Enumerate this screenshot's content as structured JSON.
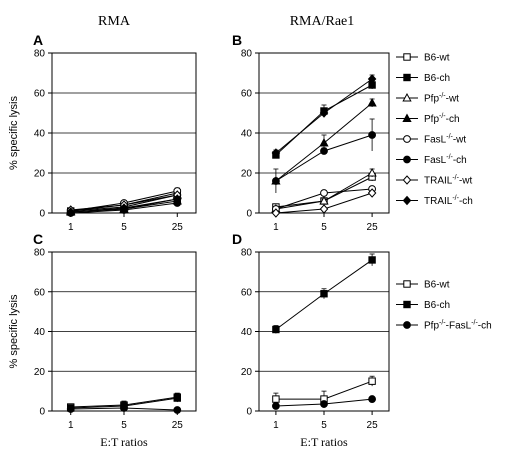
{
  "figure": {
    "col_titles": [
      "RMA",
      "RMA/Rae1"
    ],
    "ylabel": "% specific lysis",
    "xlabel": "E:T ratios"
  },
  "legend_top": [
    {
      "name_parts": [
        [
          "B6-wt",
          ""
        ]
      ],
      "series": "B6-wt"
    },
    {
      "name_parts": [
        [
          "B6-ch",
          ""
        ]
      ],
      "series": "B6-ch"
    },
    {
      "name_parts": [
        [
          "Pfp",
          ""
        ],
        [
          "-/-",
          "sup"
        ],
        [
          "-wt",
          ""
        ]
      ],
      "series": "Pfp-wt"
    },
    {
      "name_parts": [
        [
          "Pfp",
          ""
        ],
        [
          "-/-",
          "sup"
        ],
        [
          "-ch",
          ""
        ]
      ],
      "series": "Pfp-ch"
    },
    {
      "name_parts": [
        [
          "FasL",
          ""
        ],
        [
          "-/-",
          "sup"
        ],
        [
          "-wt",
          ""
        ]
      ],
      "series": "FasL-wt"
    },
    {
      "name_parts": [
        [
          "FasL",
          ""
        ],
        [
          "-/-",
          "sup"
        ],
        [
          "-ch",
          ""
        ]
      ],
      "series": "FasL-ch"
    },
    {
      "name_parts": [
        [
          "TRAIL",
          ""
        ],
        [
          "-/-",
          "sup"
        ],
        [
          "-wt",
          ""
        ]
      ],
      "series": "TRAIL-wt"
    },
    {
      "name_parts": [
        [
          "TRAIL",
          ""
        ],
        [
          "-/-",
          "sup"
        ],
        [
          "-ch",
          ""
        ]
      ],
      "series": "TRAIL-ch"
    }
  ],
  "legend_bottom": [
    {
      "name_parts": [
        [
          "B6-wt",
          ""
        ]
      ],
      "series": "B6-wt"
    },
    {
      "name_parts": [
        [
          "B6-ch",
          ""
        ]
      ],
      "series": "B6-ch"
    },
    {
      "name_parts": [
        [
          "Pfp",
          ""
        ],
        [
          "-/-",
          "sup"
        ],
        [
          "-FasL",
          ""
        ],
        [
          "-/-",
          "sup"
        ],
        [
          "-ch",
          ""
        ]
      ],
      "series": "PfpFasL-ch"
    }
  ],
  "chart_data": [
    {
      "panel": "A",
      "type": "line",
      "x": [
        "1",
        "5",
        "25"
      ],
      "ylim": [
        0,
        80
      ],
      "yticks": [
        0,
        20,
        40,
        60,
        80
      ],
      "grid": true,
      "series": [
        {
          "name": "B6-wt",
          "marker": "square-open",
          "values": [
            1,
            4,
            10
          ],
          "err": [
            0.5,
            1,
            1.5
          ]
        },
        {
          "name": "B6-ch",
          "marker": "square-filled",
          "values": [
            0.5,
            2,
            7
          ],
          "err": [
            0.5,
            1,
            1
          ]
        },
        {
          "name": "Pfp-wt",
          "marker": "triangle-open",
          "values": [
            1,
            3,
            9
          ],
          "err": [
            0.5,
            1,
            1
          ]
        },
        {
          "name": "Pfp-ch",
          "marker": "triangle-filled",
          "values": [
            0.5,
            2,
            6
          ],
          "err": [
            0.5,
            1,
            1
          ]
        },
        {
          "name": "FasL-wt",
          "marker": "circle-open",
          "values": [
            1,
            5,
            11
          ],
          "err": [
            0.5,
            1,
            1.5
          ]
        },
        {
          "name": "FasL-ch",
          "marker": "circle-filled",
          "values": [
            0,
            1.5,
            5
          ],
          "err": [
            0.5,
            1,
            1
          ]
        },
        {
          "name": "TRAIL-wt",
          "marker": "diamond-open",
          "values": [
            1.5,
            4,
            9
          ],
          "err": [
            0.5,
            1,
            1
          ]
        },
        {
          "name": "TRAIL-ch",
          "marker": "diamond-filled",
          "values": [
            0.5,
            2.5,
            7
          ],
          "err": [
            0.5,
            1,
            1
          ]
        }
      ]
    },
    {
      "panel": "B",
      "type": "line",
      "x": [
        "1",
        "5",
        "25"
      ],
      "ylim": [
        0,
        80
      ],
      "yticks": [
        0,
        20,
        40,
        60,
        80
      ],
      "grid": true,
      "series": [
        {
          "name": "B6-wt",
          "marker": "square-open",
          "values": [
            3,
            6,
            18
          ],
          "err": [
            0.5,
            1,
            2
          ]
        },
        {
          "name": "B6-ch",
          "marker": "square-filled",
          "values": [
            29,
            51,
            64
          ],
          "err": [
            1.5,
            3,
            2
          ]
        },
        {
          "name": "Pfp-wt",
          "marker": "triangle-open",
          "values": [
            2,
            6,
            20
          ],
          "err": [
            0.5,
            1,
            2
          ]
        },
        {
          "name": "Pfp-ch",
          "marker": "triangle-filled",
          "values": [
            16,
            35,
            55
          ],
          "err": [
            6,
            4,
            2
          ]
        },
        {
          "name": "FasL-wt",
          "marker": "circle-open",
          "values": [
            2,
            10,
            12
          ],
          "err": [
            0.5,
            1,
            1
          ]
        },
        {
          "name": "FasL-ch",
          "marker": "circle-filled",
          "values": [
            16,
            31,
            39
          ],
          "err": [
            1,
            1.5,
            8
          ]
        },
        {
          "name": "TRAIL-wt",
          "marker": "diamond-open",
          "values": [
            0,
            2,
            10
          ],
          "err": [
            0.5,
            0.5,
            1
          ]
        },
        {
          "name": "TRAIL-ch",
          "marker": "diamond-filled",
          "values": [
            30,
            50,
            67
          ],
          "err": [
            1.5,
            2,
            2
          ]
        }
      ]
    },
    {
      "panel": "C",
      "type": "line",
      "x": [
        "1",
        "5",
        "25"
      ],
      "ylim": [
        0,
        80
      ],
      "yticks": [
        0,
        20,
        40,
        60,
        80
      ],
      "grid": true,
      "series": [
        {
          "name": "B6-wt",
          "marker": "square-open",
          "values": [
            2,
            3,
            7
          ],
          "err": [
            1,
            2,
            2
          ]
        },
        {
          "name": "B6-ch",
          "marker": "square-filled",
          "values": [
            1.5,
            2.5,
            6.5
          ],
          "err": [
            1,
            2,
            2
          ]
        },
        {
          "name": "PfpFasL-ch",
          "marker": "circle-filled",
          "values": [
            1,
            1.5,
            0.5
          ],
          "err": [
            0.5,
            0.5,
            0.5
          ]
        }
      ]
    },
    {
      "panel": "D",
      "type": "line",
      "x": [
        "1",
        "5",
        "25"
      ],
      "ylim": [
        0,
        80
      ],
      "yticks": [
        0,
        20,
        40,
        60,
        80
      ],
      "grid": true,
      "series": [
        {
          "name": "B6-wt",
          "marker": "square-open",
          "values": [
            6,
            6,
            15
          ],
          "err": [
            3,
            4,
            2.5
          ]
        },
        {
          "name": "B6-ch",
          "marker": "square-filled",
          "values": [
            41,
            59,
            76
          ],
          "err": [
            2,
            2.5,
            3
          ]
        },
        {
          "name": "PfpFasL-ch",
          "marker": "circle-filled",
          "values": [
            2.5,
            3.5,
            6
          ],
          "err": [
            0.5,
            0.5,
            0.5
          ]
        }
      ]
    }
  ]
}
